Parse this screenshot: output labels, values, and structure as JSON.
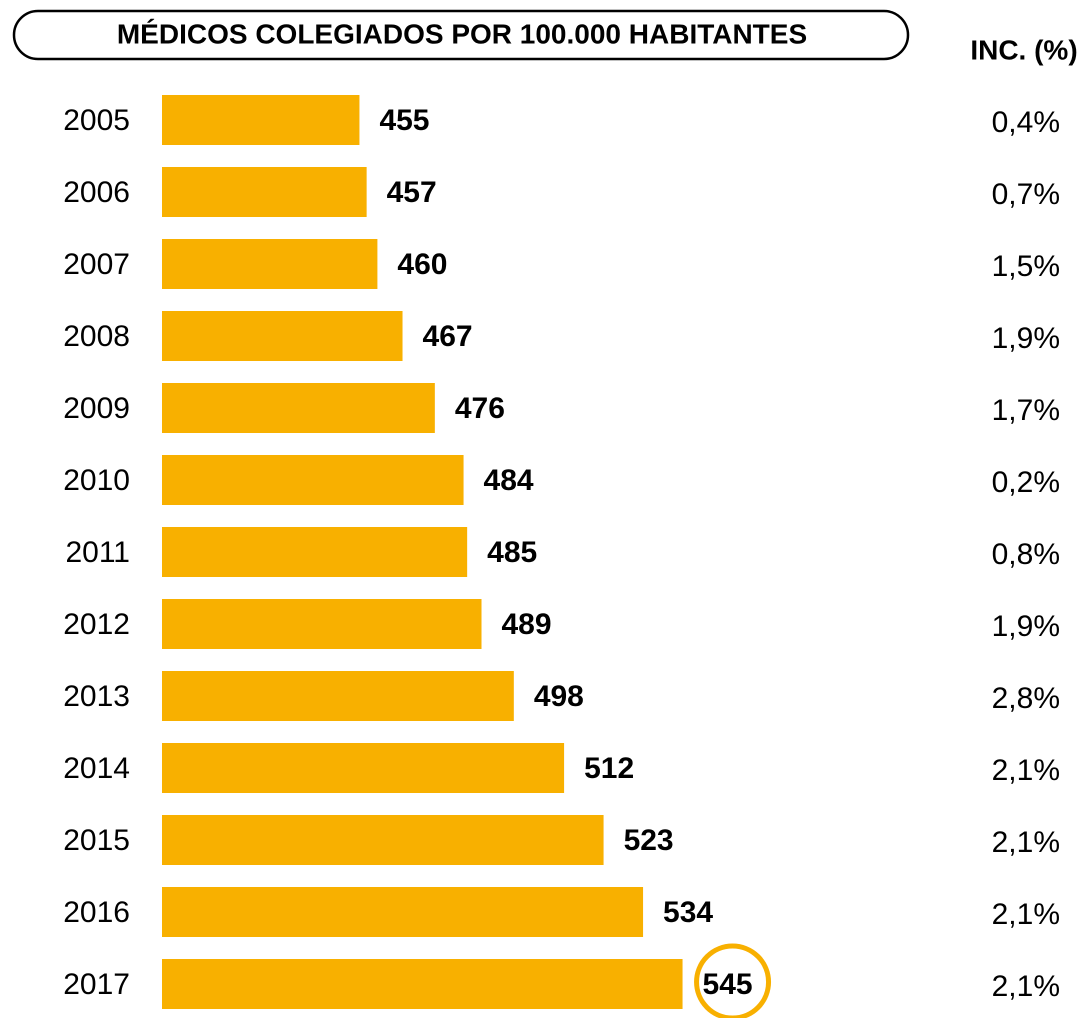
{
  "chart_data": {
    "type": "barh",
    "title": "MÉDICOS COLEGIADOS POR 100.000 HABITANTES",
    "categories": [
      "2005",
      "2006",
      "2007",
      "2008",
      "2009",
      "2010",
      "2011",
      "2012",
      "2013",
      "2014",
      "2015",
      "2016",
      "2017"
    ],
    "values": [
      455,
      457,
      460,
      467,
      476,
      484,
      485,
      489,
      498,
      512,
      523,
      534,
      545
    ],
    "color": "#f8b000",
    "xlim": [
      400,
      600
    ],
    "highlight_category": "2017",
    "increments": {
      "name": "INC. (%)",
      "values": [
        0.4,
        0.7,
        1.5,
        1.9,
        1.7,
        0.2,
        0.8,
        1.9,
        2.8,
        2.1,
        2.1,
        2.1,
        2.1
      ],
      "value_labels": [
        "0,4%",
        "0,7%",
        "1,5%",
        "1,9%",
        "1,7%",
        "0,2%",
        "0,8%",
        "1,9%",
        "2,8%",
        "2,1%",
        "2,1%",
        "2,1%",
        "2,1%"
      ]
    }
  }
}
